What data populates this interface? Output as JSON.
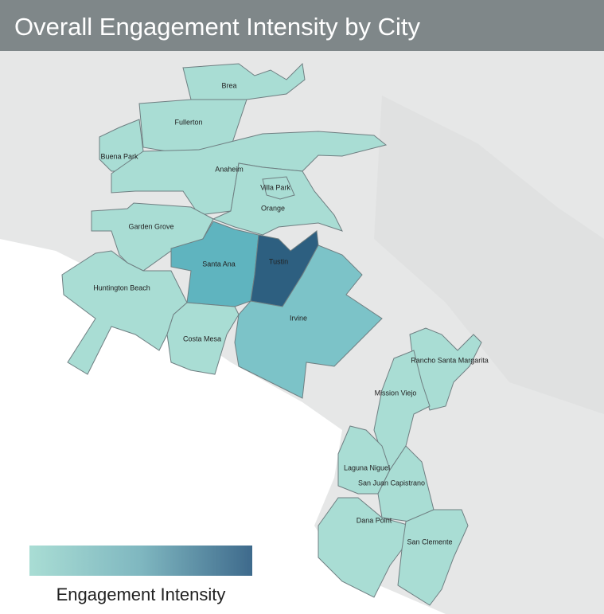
{
  "header": {
    "title": "Overall Engagement Intensity by City"
  },
  "cities": [
    {
      "label": "Brea"
    },
    {
      "label": "Fullerton"
    },
    {
      "label": "Buena Park"
    },
    {
      "label": "Anaheim"
    },
    {
      "label": "Villa Park"
    },
    {
      "label": "Orange"
    },
    {
      "label": "Garden Grove"
    },
    {
      "label": "Santa Ana"
    },
    {
      "label": "Tustin"
    },
    {
      "label": "Huntington Beach"
    },
    {
      "label": "Irvine"
    },
    {
      "label": "Costa Mesa"
    },
    {
      "label": "Rancho Santa Margarita"
    },
    {
      "label": "Mission Viejo"
    },
    {
      "label": "Laguna Niguel"
    },
    {
      "label": "San Juan Capistrano"
    },
    {
      "label": "Dana Point"
    },
    {
      "label": "San Clemente"
    }
  ],
  "legend": {
    "label": "Engagement Intensity"
  }
}
